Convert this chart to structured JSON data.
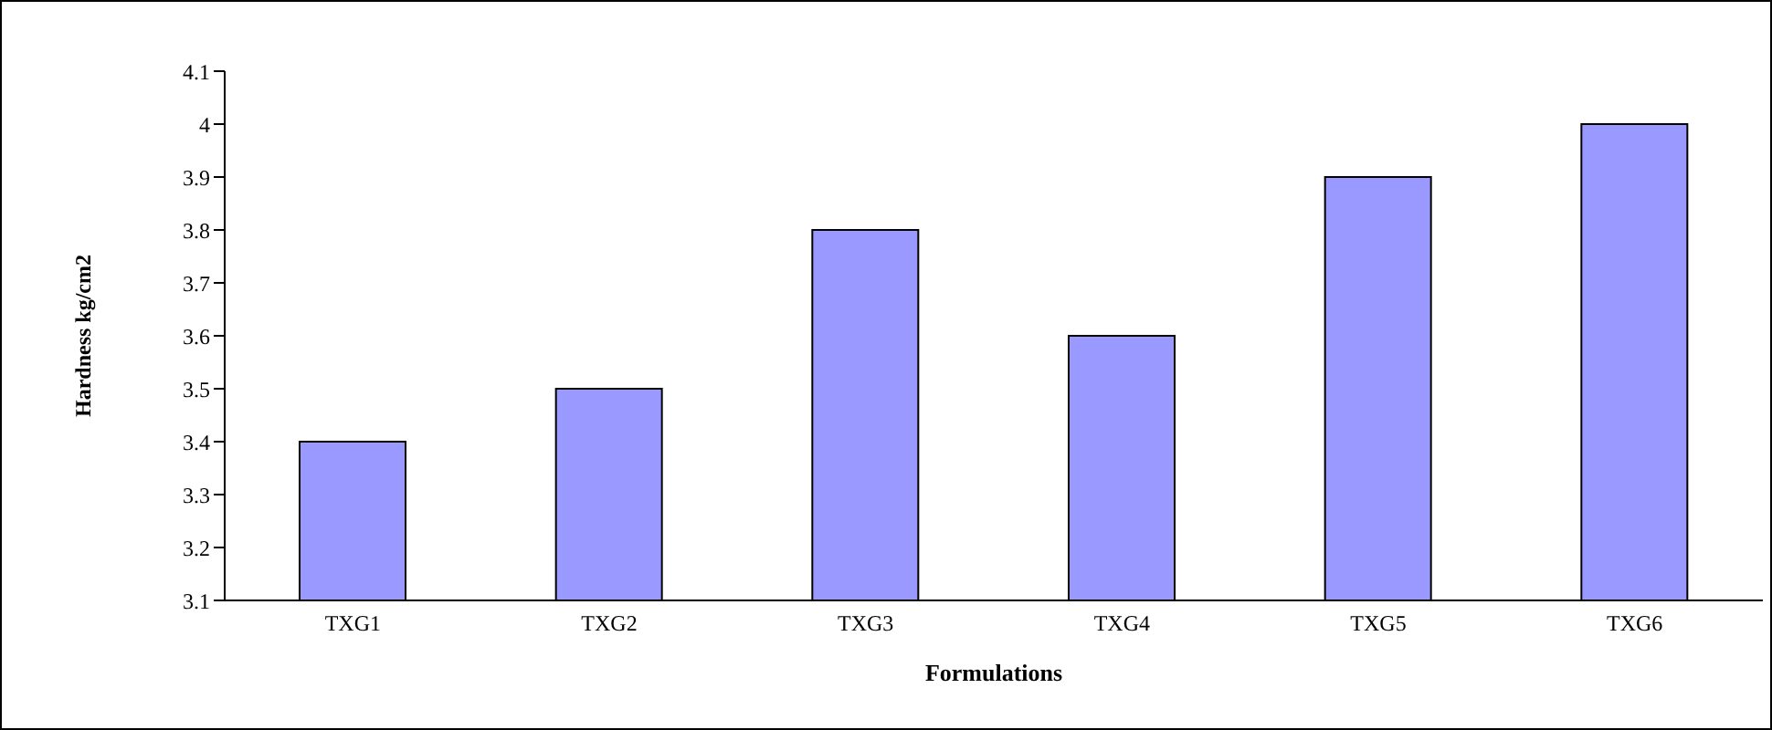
{
  "chart_data": {
    "type": "bar",
    "xlabel": "Formulations",
    "ylabel": "Hardness kg/cm2",
    "categories": [
      "TXG1",
      "TXG2",
      "TXG3",
      "TXG4",
      "TXG5",
      "TXG6"
    ],
    "values": [
      3.4,
      3.5,
      3.8,
      3.6,
      3.9,
      4.0
    ],
    "color": "#9999ff",
    "ylim": [
      3.1,
      4.1
    ],
    "yticks": [
      3.1,
      3.2,
      3.3,
      3.4,
      3.5,
      3.6,
      3.7,
      3.8,
      3.9,
      4,
      4.1
    ],
    "grid": false,
    "legend": false
  }
}
